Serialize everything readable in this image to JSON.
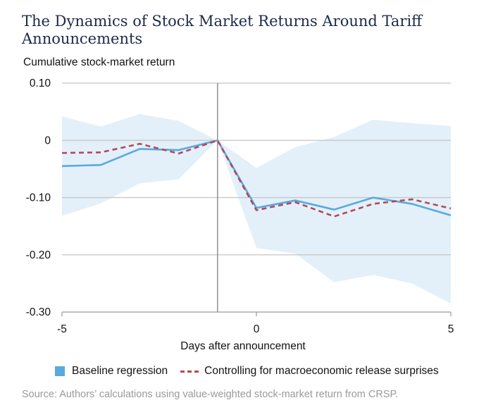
{
  "header": {
    "title": "The Dynamics of Stock Market Returns Around Tariff Announcements"
  },
  "chart_data": {
    "type": "line",
    "title": "The Dynamics of Stock Market Returns Around Tariff Announcements",
    "xlabel": "Days after announcement",
    "ylabel": "Cumulative stock-market return",
    "xlim": [
      -5,
      5
    ],
    "ylim": [
      -0.3,
      0.1
    ],
    "x_ticks": [
      -5,
      0,
      5
    ],
    "x_tick_labels": [
      "-5",
      "0",
      "5"
    ],
    "y_ticks": [
      0.1,
      0,
      -0.1,
      -0.2,
      -0.3
    ],
    "y_tick_labels": [
      "0.10",
      "0",
      "-0.10",
      "-0.20",
      "-0.30"
    ],
    "grid": "horizontal",
    "vertical_reference_line_x": -1,
    "x": [
      -5,
      -4,
      -3,
      -2,
      -1,
      0,
      1,
      2,
      3,
      4,
      5
    ],
    "series": [
      {
        "name": "Baseline regression",
        "style": "solid",
        "color": "#5aa9dc",
        "values": [
          -0.045,
          -0.043,
          -0.015,
          -0.017,
          0.0,
          -0.118,
          -0.105,
          -0.121,
          -0.1,
          -0.111,
          -0.131
        ]
      },
      {
        "name": "Controlling for macroeconomic release surprises",
        "style": "dashed",
        "color": "#b24a55",
        "values": [
          -0.022,
          -0.021,
          -0.006,
          -0.023,
          0.0,
          -0.122,
          -0.108,
          -0.133,
          -0.111,
          -0.103,
          -0.119
        ]
      }
    ],
    "confidence_band": {
      "color": "#e3f0fa",
      "upper": [
        0.042,
        0.024,
        0.046,
        0.034,
        0.0,
        -0.048,
        -0.012,
        0.006,
        0.036,
        0.03,
        0.025
      ],
      "lower": [
        -0.132,
        -0.11,
        -0.075,
        -0.068,
        0.0,
        -0.188,
        -0.198,
        -0.248,
        -0.235,
        -0.25,
        -0.285
      ]
    },
    "legend_position": "bottom",
    "source": "Source: Authors’ calculations using value-weighted stock-market return from CRSP."
  }
}
